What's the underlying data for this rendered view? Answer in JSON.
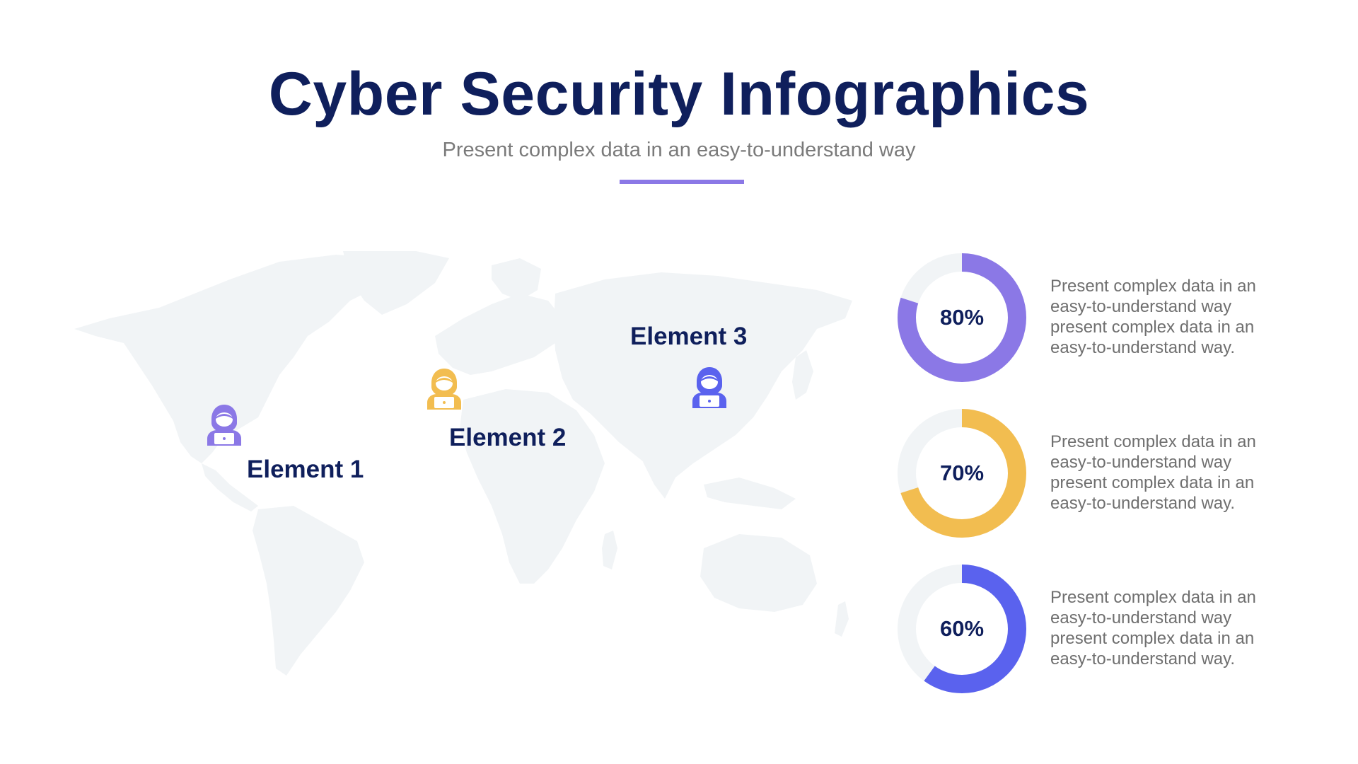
{
  "title": "Cyber Security Infographics",
  "subtitle": "Present complex data in an easy-to-understand way",
  "colors": {
    "title": "#0f1f5c",
    "accent_line": "#8b78e6",
    "map": "#f1f4f6",
    "track": "#f1f4f6",
    "purple": "#8b78e6",
    "yellow": "#f2bd50",
    "blue": "#5a62ee"
  },
  "elements": [
    {
      "label": "Element 1",
      "icon": "hacker-icon",
      "color": "#8b78e6"
    },
    {
      "label": "Element 2",
      "icon": "hacker-icon",
      "color": "#f2bd50"
    },
    {
      "label": "Element 3",
      "icon": "hacker-icon",
      "color": "#5a62ee"
    }
  ],
  "stats": [
    {
      "value": 0.8,
      "label": "80%",
      "color": "#8b78e6",
      "lines": [
        "Present complex data in an",
        "easy-to-understand way",
        "present complex data in an",
        "easy-to-understand way."
      ]
    },
    {
      "value": 0.7,
      "label": "70%",
      "color": "#f2bd50",
      "lines": [
        "Present complex data in an",
        "easy-to-understand way",
        "present complex data in an",
        "easy-to-understand way."
      ]
    },
    {
      "value": 0.6,
      "label": "60%",
      "color": "#5a62ee",
      "lines": [
        "Present complex data in an",
        "easy-to-understand way",
        "present complex data in an",
        "easy-to-understand way."
      ]
    }
  ]
}
